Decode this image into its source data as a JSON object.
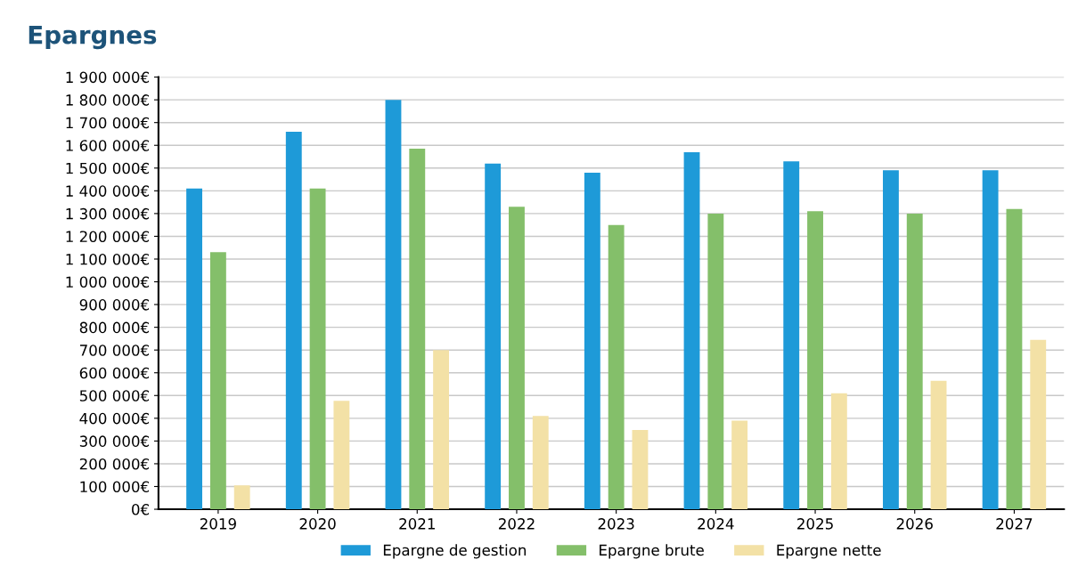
{
  "chart_data": {
    "type": "bar",
    "title": "Epargnes",
    "categories": [
      "2019",
      "2020",
      "2021",
      "2022",
      "2023",
      "2024",
      "2025",
      "2026",
      "2027"
    ],
    "series": [
      {
        "name": "Epargne de gestion",
        "color": "#1e9ad8",
        "values": [
          1410000,
          1660000,
          1800000,
          1520000,
          1480000,
          1570000,
          1530000,
          1490000,
          1490000
        ]
      },
      {
        "name": "Epargne brute",
        "color": "#84bf6a",
        "values": [
          1130000,
          1410000,
          1585000,
          1330000,
          1250000,
          1300000,
          1310000,
          1300000,
          1320000
        ]
      },
      {
        "name": "Epargne nette",
        "color": "#f3e1a6",
        "values": [
          105000,
          477000,
          700000,
          410000,
          348000,
          390000,
          510000,
          565000,
          745000
        ]
      }
    ],
    "ylim": [
      0,
      1900000
    ],
    "yticks": [
      {
        "value": 0,
        "label": "0€"
      },
      {
        "value": 100000,
        "label": "100 000€"
      },
      {
        "value": 200000,
        "label": "200 000€"
      },
      {
        "value": 300000,
        "label": "300 000€"
      },
      {
        "value": 400000,
        "label": "400 000€"
      },
      {
        "value": 500000,
        "label": "500 000€"
      },
      {
        "value": 600000,
        "label": "600 000€"
      },
      {
        "value": 700000,
        "label": "700 000€"
      },
      {
        "value": 800000,
        "label": "800 000€"
      },
      {
        "value": 900000,
        "label": "900 000€"
      },
      {
        "value": 1000000,
        "label": "1 000 000€"
      },
      {
        "value": 1100000,
        "label": "1 100 000€"
      },
      {
        "value": 1200000,
        "label": "1 200 000€"
      },
      {
        "value": 1300000,
        "label": "1 300 000€"
      },
      {
        "value": 1400000,
        "label": "1 400 000€"
      },
      {
        "value": 1500000,
        "label": "1 500 000€"
      },
      {
        "value": 1600000,
        "label": "1 600 000€"
      },
      {
        "value": 1700000,
        "label": "1 700 000€"
      },
      {
        "value": 1800000,
        "label": "1 800 000€"
      },
      {
        "value": 1900000,
        "label": "1 900 000€"
      }
    ],
    "grid": "y",
    "legend": "bottom"
  }
}
